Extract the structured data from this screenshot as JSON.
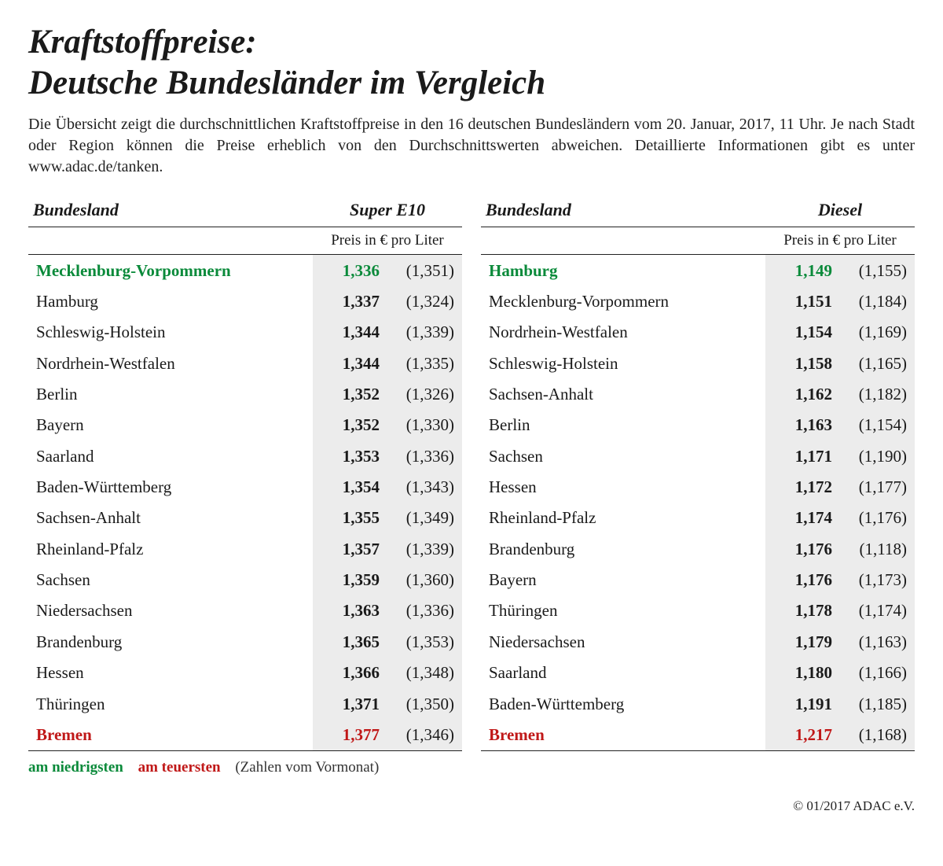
{
  "title_line1": "Kraftstoffpreise:",
  "title_line2": "Deutsche Bundesländer im Vergleich",
  "intro": "Die Übersicht zeigt die durchschnittlichen Kraftstoffpreise in den 16 deutschen Bundesländern vom 20. Januar, 2017, 11 Uhr. Je nach Stadt oder Region können die Preise erheblich von den Durchschnittswerten abweichen. Detaillierte Informationen gibt es unter www.adac.de/tanken.",
  "col_state": "Bundesland",
  "subheader": "Preis in € pro Liter",
  "legend_low": "am niedrigsten",
  "legend_high": "am teuersten",
  "legend_note": "(Zahlen vom Vormonat)",
  "copyright": "© 01/2017 ADAC e.V.",
  "colors": {
    "lowest": "#0a8a3a",
    "highest": "#c01818",
    "text": "#1a1a1a",
    "shade": "#ececec",
    "rule": "#222222",
    "bg": "#ffffff"
  },
  "typography": {
    "title_fontsize": 43,
    "body_fontsize": 20,
    "table_fontsize": 21,
    "font_family": "Georgia, serif"
  },
  "tables": [
    {
      "fuel": "Super E10",
      "rows": [
        {
          "name": "Mecklenburg-Vorpommern",
          "cur": "1,336",
          "prev": "(1,351)",
          "hl": "low"
        },
        {
          "name": "Hamburg",
          "cur": "1,337",
          "prev": "(1,324)"
        },
        {
          "name": "Schleswig-Holstein",
          "cur": "1,344",
          "prev": "(1,339)"
        },
        {
          "name": "Nordrhein-Westfalen",
          "cur": "1,344",
          "prev": "(1,335)"
        },
        {
          "name": "Berlin",
          "cur": "1,352",
          "prev": "(1,326)"
        },
        {
          "name": "Bayern",
          "cur": "1,352",
          "prev": "(1,330)"
        },
        {
          "name": "Saarland",
          "cur": "1,353",
          "prev": "(1,336)"
        },
        {
          "name": "Baden-Württemberg",
          "cur": "1,354",
          "prev": "(1,343)"
        },
        {
          "name": "Sachsen-Anhalt",
          "cur": "1,355",
          "prev": "(1,349)"
        },
        {
          "name": "Rheinland-Pfalz",
          "cur": "1,357",
          "prev": "(1,339)"
        },
        {
          "name": "Sachsen",
          "cur": "1,359",
          "prev": "(1,360)"
        },
        {
          "name": "Niedersachsen",
          "cur": "1,363",
          "prev": "(1,336)"
        },
        {
          "name": "Brandenburg",
          "cur": "1,365",
          "prev": "(1,353)"
        },
        {
          "name": "Hessen",
          "cur": "1,366",
          "prev": "(1,348)"
        },
        {
          "name": "Thüringen",
          "cur": "1,371",
          "prev": "(1,350)"
        },
        {
          "name": "Bremen",
          "cur": "1,377",
          "prev": "(1,346)",
          "hl": "high"
        }
      ]
    },
    {
      "fuel": "Diesel",
      "rows": [
        {
          "name": "Hamburg",
          "cur": "1,149",
          "prev": "(1,155)",
          "hl": "low"
        },
        {
          "name": "Mecklenburg-Vorpommern",
          "cur": "1,151",
          "prev": "(1,184)"
        },
        {
          "name": "Nordrhein-Westfalen",
          "cur": "1,154",
          "prev": "(1,169)"
        },
        {
          "name": "Schleswig-Holstein",
          "cur": "1,158",
          "prev": "(1,165)"
        },
        {
          "name": "Sachsen-Anhalt",
          "cur": "1,162",
          "prev": "(1,182)"
        },
        {
          "name": "Berlin",
          "cur": "1,163",
          "prev": "(1,154)"
        },
        {
          "name": "Sachsen",
          "cur": "1,171",
          "prev": "(1,190)"
        },
        {
          "name": "Hessen",
          "cur": "1,172",
          "prev": "(1,177)"
        },
        {
          "name": "Rheinland-Pfalz",
          "cur": "1,174",
          "prev": "(1,176)"
        },
        {
          "name": "Brandenburg",
          "cur": "1,176",
          "prev": "(1,118)"
        },
        {
          "name": "Bayern",
          "cur": "1,176",
          "prev": "(1,173)"
        },
        {
          "name": "Thüringen",
          "cur": "1,178",
          "prev": "(1,174)"
        },
        {
          "name": "Niedersachsen",
          "cur": "1,179",
          "prev": "(1,163)"
        },
        {
          "name": "Saarland",
          "cur": "1,180",
          "prev": "(1,166)"
        },
        {
          "name": "Baden-Württemberg",
          "cur": "1,191",
          "prev": "(1,185)"
        },
        {
          "name": "Bremen",
          "cur": "1,217",
          "prev": "(1,168)",
          "hl": "high"
        }
      ]
    }
  ]
}
